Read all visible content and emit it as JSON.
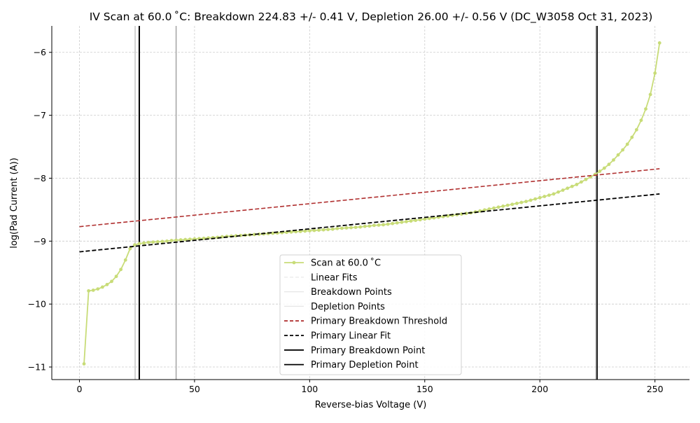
{
  "chart_data": {
    "type": "line",
    "title": "IV Scan at 60.0$^\\circ$C: Breakdown 224.83 +/- 0.41 V, Depletion 26.00 +/- 0.56 V (DC_W3058 Oct 31, 2023)",
    "title_display": "IV Scan at 60.0 ˚C: Breakdown 224.83 +/- 0.41 V, Depletion 26.00 +/- 0.56 V (DC_W3058 Oct 31, 2023)",
    "xlabel": "Reverse-bias Voltage (V)",
    "ylabel": "log(Pad Current (A))",
    "xlim": [
      -12,
      265
    ],
    "ylim": [
      -11.2,
      -5.58
    ],
    "x_ticks": [
      0,
      50,
      100,
      150,
      200,
      250
    ],
    "x_tick_labels": [
      "0",
      "50",
      "100",
      "150",
      "200",
      "250"
    ],
    "y_ticks": [
      -11,
      -10,
      -9,
      -8,
      -7,
      -6
    ],
    "y_tick_labels": [
      "−11",
      "−10",
      "−9",
      "−8",
      "−7",
      "−6"
    ],
    "grid": true,
    "legend_position": "lower-center",
    "colors": {
      "scan": "#c8dc78",
      "threshold": "#b03030",
      "linear_fit": "#000000",
      "breakdown_point": "#000000",
      "depletion_point": "#000000",
      "secondary_line_light": "#c8c8c8",
      "secondary_line_mid": "#a8a8a8",
      "grid": "#cccccc"
    },
    "series": [
      {
        "name": "Scan at 60.0$^\\circ$C",
        "display_name": "Scan at 60.0 ˚C",
        "style": "line-marker",
        "x": [
          2,
          4,
          6,
          8,
          10,
          12,
          14,
          16,
          18,
          20,
          22,
          24,
          26,
          28,
          30,
          32,
          34,
          36,
          38,
          40,
          42,
          44,
          46,
          48,
          50,
          52,
          54,
          56,
          58,
          60,
          62,
          64,
          66,
          68,
          70,
          72,
          74,
          76,
          78,
          80,
          82,
          84,
          86,
          88,
          90,
          92,
          94,
          96,
          98,
          100,
          102,
          104,
          106,
          108,
          110,
          112,
          114,
          116,
          118,
          120,
          122,
          124,
          126,
          128,
          130,
          132,
          134,
          136,
          138,
          140,
          142,
          144,
          146,
          148,
          150,
          152,
          154,
          156,
          158,
          160,
          162,
          164,
          166,
          168,
          170,
          172,
          174,
          176,
          178,
          180,
          182,
          184,
          186,
          188,
          190,
          192,
          194,
          196,
          198,
          200,
          202,
          204,
          206,
          208,
          210,
          212,
          214,
          216,
          218,
          220,
          222,
          224,
          226,
          228,
          230,
          232,
          234,
          236,
          238,
          240,
          242,
          244,
          246,
          248,
          250,
          252
        ],
        "y": [
          -10.95,
          -9.79,
          -9.78,
          -9.76,
          -9.73,
          -9.69,
          -9.64,
          -9.56,
          -9.45,
          -9.3,
          -9.12,
          -9.06,
          -9.04,
          -9.03,
          -9.02,
          -9.015,
          -9.01,
          -9.005,
          -9.0,
          -8.99,
          -8.985,
          -8.98,
          -8.975,
          -8.97,
          -8.965,
          -8.96,
          -8.955,
          -8.95,
          -8.945,
          -8.94,
          -8.93,
          -8.925,
          -8.92,
          -8.915,
          -8.91,
          -8.905,
          -8.9,
          -8.895,
          -8.89,
          -8.885,
          -8.88,
          -8.875,
          -8.87,
          -8.865,
          -8.86,
          -8.855,
          -8.85,
          -8.845,
          -8.84,
          -8.835,
          -8.83,
          -8.825,
          -8.82,
          -8.815,
          -8.81,
          -8.8,
          -8.795,
          -8.79,
          -8.785,
          -8.78,
          -8.775,
          -8.765,
          -8.76,
          -8.75,
          -8.745,
          -8.74,
          -8.73,
          -8.72,
          -8.71,
          -8.7,
          -8.69,
          -8.68,
          -8.67,
          -8.66,
          -8.65,
          -8.64,
          -8.63,
          -8.62,
          -8.61,
          -8.6,
          -8.59,
          -8.58,
          -8.57,
          -8.56,
          -8.55,
          -8.535,
          -8.52,
          -8.505,
          -8.49,
          -8.475,
          -8.46,
          -8.445,
          -8.43,
          -8.415,
          -8.4,
          -8.385,
          -8.37,
          -8.35,
          -8.33,
          -8.31,
          -8.29,
          -8.27,
          -8.25,
          -8.22,
          -8.19,
          -8.16,
          -8.13,
          -8.1,
          -8.06,
          -8.02,
          -7.98,
          -7.94,
          -7.89,
          -7.84,
          -7.78,
          -7.71,
          -7.63,
          -7.55,
          -7.46,
          -7.35,
          -7.23,
          -7.08,
          -6.9,
          -6.67,
          -6.33,
          -5.85
        ]
      },
      {
        "name": "Primary Breakdown Threshold",
        "style": "dashed",
        "x": [
          0,
          252
        ],
        "y": [
          -8.77,
          -7.85
        ]
      },
      {
        "name": "Primary Linear Fit",
        "style": "dashed",
        "x": [
          0,
          252
        ],
        "y": [
          -9.17,
          -8.25
        ]
      }
    ],
    "vertical_lines": [
      {
        "name": "Primary Depletion Point",
        "x": 26.0,
        "role": "depletion_point"
      },
      {
        "name": "Primary Breakdown Point",
        "x": 224.83,
        "role": "breakdown_point"
      },
      {
        "name": "",
        "x": 24.2,
        "role": "secondary_line_light"
      },
      {
        "name": "",
        "x": 42.0,
        "role": "secondary_line_mid"
      },
      {
        "name": "",
        "x": 224.4,
        "role": "secondary_line_mid"
      }
    ],
    "legend": [
      {
        "label": "Scan at 60.0$^\\circ$C",
        "display": "Scan at 60.0 ˚C",
        "style": "line-marker",
        "role": "scan"
      },
      {
        "label": "Linear Fits",
        "style": "faint-dashed",
        "role": "secondary_line_light"
      },
      {
        "label": "Breakdown Points",
        "style": "faint-solid",
        "role": "secondary_line_light"
      },
      {
        "label": "Depletion Points",
        "style": "faint-solid",
        "role": "secondary_line_light"
      },
      {
        "label": "Primary Breakdown Threshold",
        "style": "dashed",
        "role": "threshold"
      },
      {
        "label": "Primary Linear Fit",
        "style": "dashed",
        "role": "linear_fit"
      },
      {
        "label": "Primary Breakdown Point",
        "style": "solid",
        "role": "breakdown_point"
      },
      {
        "label": "Primary Depletion Point",
        "style": "solid",
        "role": "depletion_point"
      }
    ]
  }
}
